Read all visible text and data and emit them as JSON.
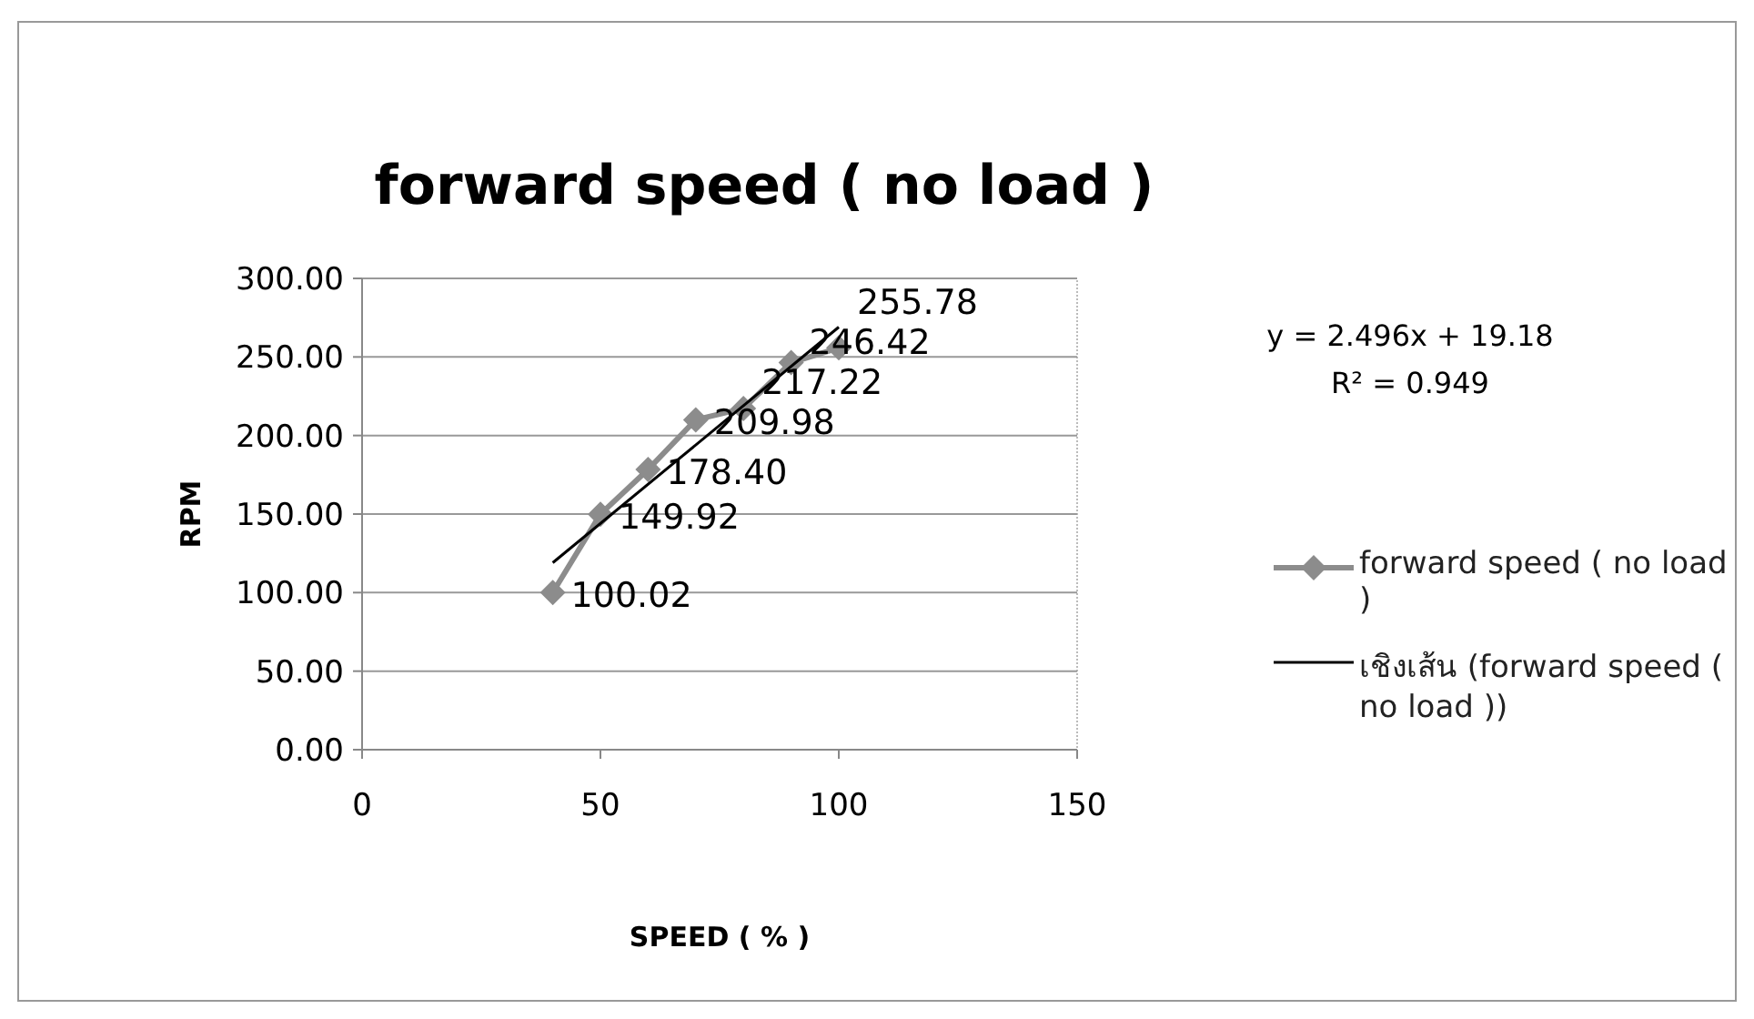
{
  "chart_data": {
    "type": "line",
    "title": "forward speed ( no load )",
    "xlabel": "SPEED ( % )",
    "ylabel": "RPM",
    "x": [
      40,
      50,
      60,
      70,
      80,
      90,
      100
    ],
    "series": [
      {
        "name": "forward speed ( no load )",
        "color": "#8c8c8c",
        "marker": "diamond",
        "value_labels": [
          "100.02",
          "149.92",
          "178.40",
          "209.98",
          "217.22",
          "246.42",
          "255.78"
        ],
        "values": [
          100.02,
          149.92,
          178.4,
          209.98,
          217.22,
          246.42,
          255.78
        ]
      },
      {
        "name": "เชิงเส้น (forward speed ( no load ))",
        "color": "#000000",
        "marker": "none",
        "x": [
          40,
          100
        ],
        "values": [
          119,
          269
        ]
      }
    ],
    "annotations": [
      "y = 2.496x + 19.18",
      "R² = 0.949"
    ],
    "xlim": [
      0,
      150
    ],
    "xticks": [
      0,
      50,
      100,
      150
    ],
    "ylim": [
      0,
      300
    ],
    "yticks": [
      {
        "value": 0,
        "label": "0.00"
      },
      {
        "value": 50,
        "label": "50.00"
      },
      {
        "value": 100,
        "label": "100.00"
      },
      {
        "value": 150,
        "label": "150.00"
      },
      {
        "value": 200,
        "label": "200.00"
      },
      {
        "value": 250,
        "label": "250.00"
      },
      {
        "value": 300,
        "label": "300.00"
      }
    ],
    "grid": "y",
    "legend": "right"
  }
}
